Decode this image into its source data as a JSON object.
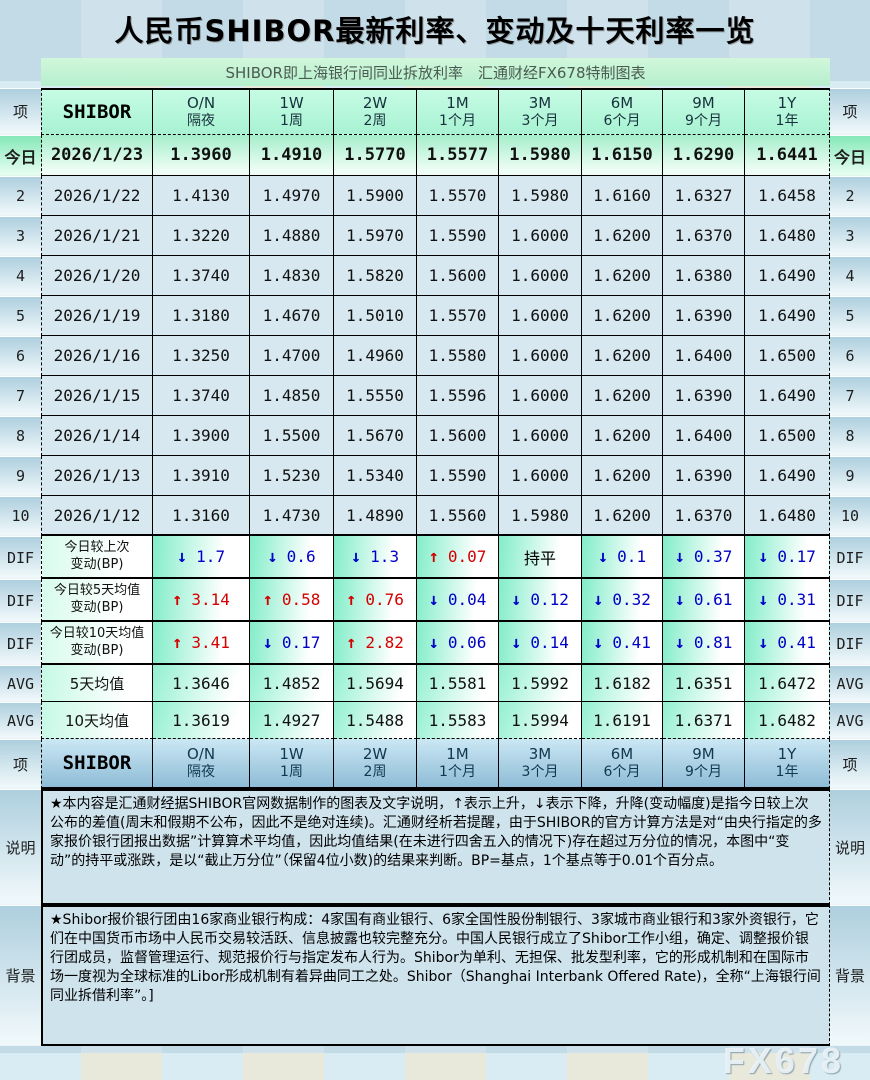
{
  "watermark": "FX678",
  "colors": {
    "up_arrow": "#d40000",
    "down_arrow": "#0000c8",
    "flat_text": "#000000"
  },
  "notes": {
    "side_label": "说明",
    "text": "★本内容是汇通财经据SHIBOR官网数据制作的图表及文字说明，↑表示上升，↓表示下降，升降(变动幅度)是指今日较上次公布的差值(周末和假期不公布，因此不是绝对连续)。汇通财经析若提醒，由于SHIBOR的官方计算方法是对“由央行指定的多家报价银行团报出数据”计算算术平均值，因此均值结果(在未进行四舍五入的情况下)存在超过万分位的情况，本图中“变动”的持平或涨跌，是以“截止万分位”（保留4位小数)的结果来判断。BP=基点，1个基点等于0.01个百分点。"
  },
  "background_section": {
    "side_label": "背景",
    "text": "★Shibor报价银行团由16家商业银行构成：4家国有商业银行、6家全国性股份制银行、3家城市商业银行和3家外资银行，它们在中国货币市场中人民币交易较活跃、信息披露也较完整充分。中国人民银行成立了Shibor工作小组，确定、调整报价银行团成员，监督管理运行、规范报价行与指定发布人行为。Shibor为单利、无担保、批发型利率，它的形成机制和在国际市场一度视为全球标准的Libor形成机制有着异曲同工之处。Shibor（Shanghai Interbank Offered Rate)，全称“上海银行间同业拆借利率”。]"
  },
  "chart_data": {
    "type": "table",
    "title": "人民币SHIBOR最新利率、变动及十天利率一览",
    "subtitle": "SHIBOR即上海银行间同业拆放利率　汇通财经FX678特制图表",
    "item_label": "项",
    "shibor_label": "SHIBOR",
    "tenors": [
      {
        "code": "O/N",
        "cn": "隔夜"
      },
      {
        "code": "1W",
        "cn": "1周"
      },
      {
        "code": "2W",
        "cn": "2周"
      },
      {
        "code": "1M",
        "cn": "1个月"
      },
      {
        "code": "3M",
        "cn": "3个月"
      },
      {
        "code": "6M",
        "cn": "6个月"
      },
      {
        "code": "9M",
        "cn": "9个月"
      },
      {
        "code": "1Y",
        "cn": "1年"
      }
    ],
    "daily": [
      {
        "label": "今日",
        "is_today": true,
        "date": "2026/1/23",
        "values": [
          "1.3960",
          "1.4910",
          "1.5770",
          "1.5577",
          "1.5980",
          "1.6150",
          "1.6290",
          "1.6441"
        ]
      },
      {
        "label": "2",
        "date": "2026/1/22",
        "values": [
          "1.4130",
          "1.4970",
          "1.5900",
          "1.5570",
          "1.5980",
          "1.6160",
          "1.6327",
          "1.6458"
        ]
      },
      {
        "label": "3",
        "date": "2026/1/21",
        "values": [
          "1.3220",
          "1.4880",
          "1.5970",
          "1.5590",
          "1.6000",
          "1.6200",
          "1.6370",
          "1.6480"
        ]
      },
      {
        "label": "4",
        "date": "2026/1/20",
        "values": [
          "1.3740",
          "1.4830",
          "1.5820",
          "1.5600",
          "1.6000",
          "1.6200",
          "1.6380",
          "1.6490"
        ]
      },
      {
        "label": "5",
        "date": "2026/1/19",
        "values": [
          "1.3180",
          "1.4670",
          "1.5010",
          "1.5570",
          "1.6000",
          "1.6200",
          "1.6390",
          "1.6490"
        ]
      },
      {
        "label": "6",
        "date": "2026/1/16",
        "values": [
          "1.3250",
          "1.4700",
          "1.4960",
          "1.5580",
          "1.6000",
          "1.6200",
          "1.6400",
          "1.6500"
        ]
      },
      {
        "label": "7",
        "date": "2026/1/15",
        "values": [
          "1.3740",
          "1.4850",
          "1.5550",
          "1.5596",
          "1.6000",
          "1.6200",
          "1.6390",
          "1.6490"
        ]
      },
      {
        "label": "8",
        "date": "2026/1/14",
        "values": [
          "1.3900",
          "1.5500",
          "1.5670",
          "1.5600",
          "1.6000",
          "1.6200",
          "1.6400",
          "1.6500"
        ]
      },
      {
        "label": "9",
        "date": "2026/1/13",
        "values": [
          "1.3910",
          "1.5230",
          "1.5340",
          "1.5590",
          "1.6000",
          "1.6200",
          "1.6390",
          "1.6490"
        ]
      },
      {
        "label": "10",
        "date": "2026/1/12",
        "values": [
          "1.3160",
          "1.4730",
          "1.4890",
          "1.5560",
          "1.5980",
          "1.6200",
          "1.6370",
          "1.6480"
        ]
      }
    ],
    "diffs": [
      {
        "label": "DIF",
        "name": [
          "今日较上次",
          "变动(BP)"
        ],
        "cells": [
          {
            "dir": "down",
            "v": "1.7"
          },
          {
            "dir": "down",
            "v": "0.6"
          },
          {
            "dir": "down",
            "v": "1.3"
          },
          {
            "dir": "up",
            "v": "0.07"
          },
          {
            "dir": "flat",
            "v": "持平"
          },
          {
            "dir": "down",
            "v": "0.1"
          },
          {
            "dir": "down",
            "v": "0.37"
          },
          {
            "dir": "down",
            "v": "0.17"
          }
        ]
      },
      {
        "label": "DIF",
        "name": [
          "今日较5天均值",
          "变动(BP)"
        ],
        "cells": [
          {
            "dir": "up",
            "v": "3.14"
          },
          {
            "dir": "up",
            "v": "0.58"
          },
          {
            "dir": "up",
            "v": "0.76"
          },
          {
            "dir": "down",
            "v": "0.04"
          },
          {
            "dir": "down",
            "v": "0.12"
          },
          {
            "dir": "down",
            "v": "0.32"
          },
          {
            "dir": "down",
            "v": "0.61"
          },
          {
            "dir": "down",
            "v": "0.31"
          }
        ]
      },
      {
        "label": "DIF",
        "name": [
          "今日较10天均值",
          "变动(BP)"
        ],
        "cells": [
          {
            "dir": "up",
            "v": "3.41"
          },
          {
            "dir": "down",
            "v": "0.17"
          },
          {
            "dir": "up",
            "v": "2.82"
          },
          {
            "dir": "down",
            "v": "0.06"
          },
          {
            "dir": "down",
            "v": "0.14"
          },
          {
            "dir": "down",
            "v": "0.41"
          },
          {
            "dir": "down",
            "v": "0.81"
          },
          {
            "dir": "down",
            "v": "0.41"
          }
        ]
      }
    ],
    "averages": [
      {
        "label": "AVG",
        "name": "5天均值",
        "values": [
          "1.3646",
          "1.4852",
          "1.5694",
          "1.5581",
          "1.5992",
          "1.6182",
          "1.6351",
          "1.6472"
        ]
      },
      {
        "label": "AVG",
        "name": "10天均值",
        "values": [
          "1.3619",
          "1.4927",
          "1.5488",
          "1.5583",
          "1.5994",
          "1.6191",
          "1.6371",
          "1.6482"
        ]
      }
    ]
  }
}
